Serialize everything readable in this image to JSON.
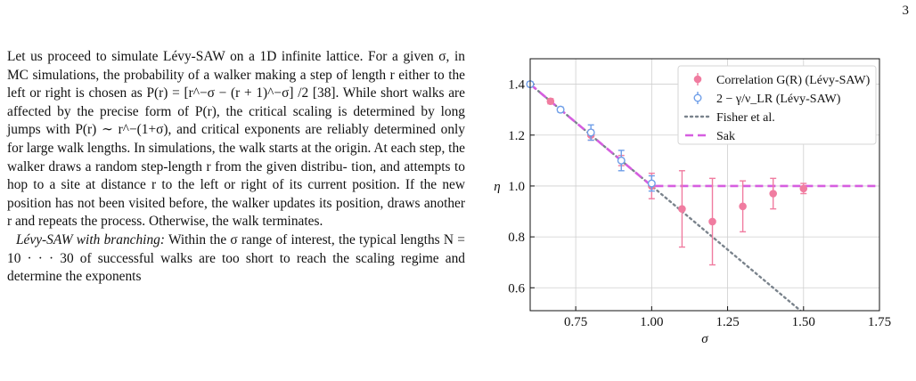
{
  "page": {
    "number": "3"
  },
  "body_text": {
    "para1": [
      "Let us proceed to simulate Lévy-SAW on a 1D infinite lattice.",
      "For a given σ, in MC simulations, the probability of a walker",
      "making a step of length r either to the left or right is chosen",
      "as P(r) = [r^−σ − (r + 1)^−σ] /2 [38]. While short walks are",
      "affected by the precise form of P(r), the critical scaling is",
      "determined by long jumps with P(r) ∼ r^−(1+σ), and critical",
      "exponents are reliably determined only for large walk lengths.",
      "In simulations, the walk starts at the origin. At each step, the",
      "walker draws a random step-length r from the given distribu-",
      "tion, and attempts to hop to a site at distance r to the left or",
      "right of its current position. If the new position has not been",
      "visited before, the walker updates its position, draws another",
      "r and repeats the process. Otherwise, the walk terminates."
    ],
    "para2_heading": "Lévy-SAW with branching:",
    "para2": [
      "Within the σ range of interest,",
      "the typical lengths N = 10 · · · 30 of successful walks are too",
      "short to reach the scaling regime and determine the exponents"
    ]
  },
  "chart_data": {
    "type": "scatter",
    "xlabel": "σ",
    "ylabel": "η",
    "xlim": [
      0.6,
      1.75
    ],
    "ylim": [
      0.51,
      1.5
    ],
    "x_ticks": [
      "0.75",
      "1.00",
      "1.25",
      "1.50",
      "1.75"
    ],
    "y_ticks": [
      "0.6",
      "0.8",
      "1.0",
      "1.2",
      "1.4"
    ],
    "grid": true,
    "legend_position": "top-right",
    "legend": [
      "Correlation G(R) (Lévy-SAW)",
      "2 − γ/ν_LR (Lévy-SAW)",
      "Fisher et al.",
      "Sak"
    ],
    "series": [
      {
        "name": "Correlation G(R) (Lévy-SAW)",
        "color": "#f07ca0",
        "marker": "filled-circle",
        "x": [
          0.6,
          0.667,
          0.8,
          0.9,
          1.0,
          1.1,
          1.2,
          1.3,
          1.4,
          1.5
        ],
        "y": [
          1.4,
          1.333,
          1.2,
          1.1,
          1.0,
          0.91,
          0.86,
          0.92,
          0.97,
          0.99
        ],
        "err": [
          0.01,
          0.01,
          0.02,
          0.02,
          0.05,
          0.15,
          0.17,
          0.1,
          0.06,
          0.02
        ]
      },
      {
        "name": "2 − γ/ν_LR (Lévy-SAW)",
        "color": "#6e9ee8",
        "marker": "open-circle",
        "x": [
          0.6,
          0.7,
          0.8,
          0.9,
          1.0
        ],
        "y": [
          1.4,
          1.3,
          1.21,
          1.1,
          1.01
        ],
        "err": [
          0.01,
          0.01,
          0.03,
          0.04,
          0.03
        ]
      },
      {
        "name": "Fisher et al.",
        "color": "#7a838c",
        "style": "dotted",
        "x": [
          0.6,
          1.5
        ],
        "y": [
          1.4,
          0.5
        ]
      },
      {
        "name": "Sak",
        "color": "#d65ee0",
        "style": "dashed",
        "x": [
          0.6,
          1.0,
          1.75
        ],
        "y": [
          1.4,
          1.0,
          1.0
        ]
      }
    ]
  }
}
